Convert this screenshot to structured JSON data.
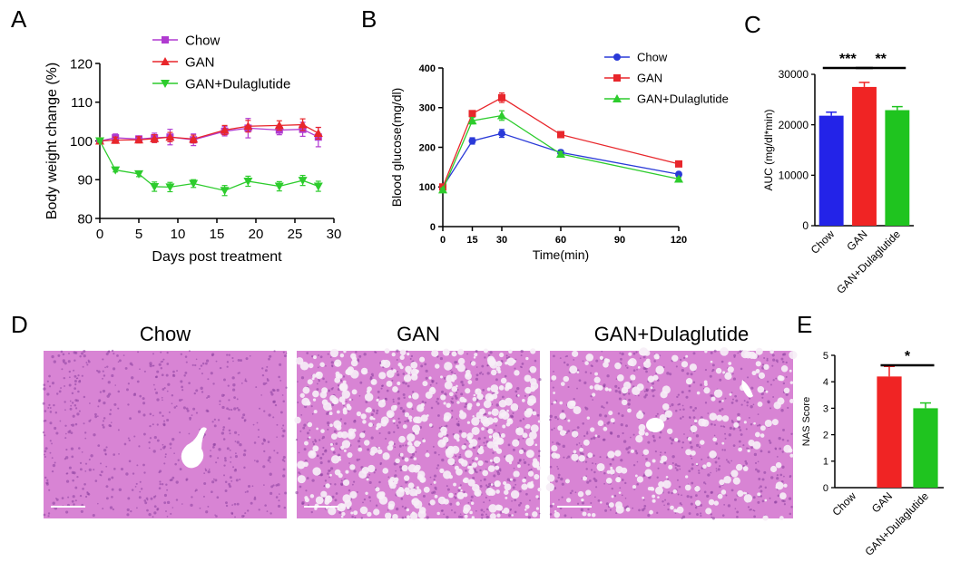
{
  "panels": {
    "a": "A",
    "b": "B",
    "c": "C",
    "d": "D",
    "e": "E"
  },
  "chart_data": [
    {
      "id": "A",
      "type": "line",
      "xlabel": "Days post treatment",
      "ylabel": "Body weight change (%)",
      "xlim": [
        0,
        30
      ],
      "ylim": [
        80,
        120
      ],
      "xticks": [
        0,
        5,
        10,
        15,
        20,
        25,
        30
      ],
      "yticks": [
        80,
        90,
        100,
        110,
        120
      ],
      "legend_position": "top-center",
      "series": [
        {
          "name": "Chow",
          "color": "#b03ad0",
          "marker": "square",
          "x": [
            0,
            2,
            5,
            7,
            9,
            12,
            16,
            19,
            23,
            26,
            28
          ],
          "y": [
            100,
            100.8,
            100.5,
            100.8,
            101,
            100.3,
            102.5,
            103.3,
            102.8,
            103,
            101
          ],
          "err": [
            0.5,
            1,
            0.8,
            1.2,
            2,
            1.5,
            1.2,
            2.5,
            1.2,
            1.8,
            2.5
          ]
        },
        {
          "name": "GAN",
          "color": "#e8262b",
          "marker": "triangle-up",
          "x": [
            0,
            2,
            5,
            7,
            9,
            12,
            16,
            19,
            23,
            26,
            28
          ],
          "y": [
            100,
            100.2,
            100.3,
            100.6,
            101,
            100.5,
            102.8,
            103.8,
            104,
            104.2,
            102
          ],
          "err": [
            0.5,
            0.8,
            0.8,
            1,
            1.2,
            1,
            1.2,
            1.5,
            1.2,
            1.5,
            1.5
          ]
        },
        {
          "name": "GAN+Dulaglutide",
          "color": "#2dcc2d",
          "marker": "triangle-down",
          "x": [
            0,
            2,
            5,
            7,
            9,
            12,
            16,
            19,
            23,
            26,
            28
          ],
          "y": [
            100,
            92.5,
            91.5,
            88.2,
            88.1,
            89,
            87.2,
            89.6,
            88.3,
            89.8,
            88.3
          ],
          "err": [
            0.3,
            0.5,
            0.7,
            1.2,
            1.2,
            1,
            1.3,
            1.3,
            1.2,
            1.3,
            1.3
          ]
        }
      ]
    },
    {
      "id": "B",
      "type": "line",
      "xlabel": "Time(min)",
      "ylabel": "Blood glucose(mg/dl)",
      "xlim": [
        0,
        120
      ],
      "ylim": [
        0,
        400
      ],
      "xticks": [
        0,
        15,
        30,
        60,
        90,
        120
      ],
      "yticks": [
        0,
        100,
        200,
        300,
        400
      ],
      "legend_position": "top-right",
      "series": [
        {
          "name": "Chow",
          "color": "#2a3ad8",
          "marker": "circle",
          "x": [
            0,
            15,
            30,
            60,
            120
          ],
          "y": [
            100,
            216,
            235,
            187,
            132
          ],
          "err": [
            4,
            8,
            10,
            6,
            4
          ]
        },
        {
          "name": "GAN",
          "color": "#e8262b",
          "marker": "square",
          "x": [
            0,
            15,
            30,
            60,
            120
          ],
          "y": [
            100,
            285,
            325,
            232,
            158
          ],
          "err": [
            4,
            6,
            12,
            6,
            4
          ]
        },
        {
          "name": "GAN+Dulaglutide",
          "color": "#2dcc2d",
          "marker": "triangle-up",
          "x": [
            0,
            15,
            30,
            60,
            120
          ],
          "y": [
            93,
            267,
            280,
            183,
            120
          ],
          "err": [
            4,
            8,
            12,
            6,
            4
          ]
        }
      ]
    },
    {
      "id": "C",
      "type": "bar",
      "ylabel": "AUC (mg/dl*min)",
      "ylim": [
        0,
        30000
      ],
      "yticks": [
        0,
        10000,
        20000,
        30000
      ],
      "categories": [
        "Chow",
        "GAN",
        "GAN+Dulaglutide"
      ],
      "values": [
        21800,
        27500,
        22900
      ],
      "errors": [
        700,
        900,
        700
      ],
      "colors": [
        "#2323e8",
        "#f02424",
        "#1fc41f"
      ],
      "significance": [
        {
          "from": 0,
          "to": 1,
          "label": "***"
        },
        {
          "from": 1,
          "to": 2,
          "label": "**"
        }
      ]
    },
    {
      "id": "E",
      "type": "bar",
      "ylabel": "NAS Score",
      "ylim": [
        0,
        5
      ],
      "yticks": [
        0,
        1,
        2,
        3,
        4,
        5
      ],
      "categories": [
        "Chow",
        "GAN",
        "GAN+Dulaglutide"
      ],
      "values": [
        0,
        4.2,
        3.0
      ],
      "errors": [
        0,
        0.38,
        0.2
      ],
      "colors": [
        "#2323e8",
        "#f02424",
        "#1fc41f"
      ],
      "significance": [
        {
          "from": 1,
          "to": 2,
          "label": "*"
        }
      ]
    }
  ],
  "histology": {
    "titles": [
      "Chow",
      "GAN",
      "GAN+Dulaglutide"
    ],
    "tissue_color": "#d884d4"
  }
}
